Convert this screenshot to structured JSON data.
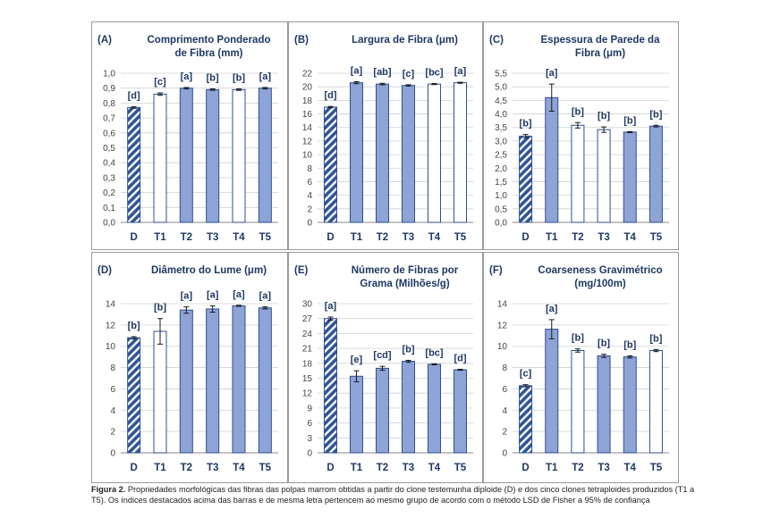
{
  "colors": {
    "D_fill": "#2f5597",
    "D_stripe": "#ffffff",
    "filled": "#8ea3d6",
    "open": "#ffffff",
    "bar_stroke": "#2f4f8f",
    "text": "#1f3864",
    "grid": "#d0d0d0",
    "panel_border": "#9a9a9a"
  },
  "chart_data": [
    {
      "id": "A",
      "type": "bar",
      "panel_label": "(A)",
      "title_lines": [
        "Comprimento Ponderado",
        "de Fibra (mm)"
      ],
      "categories": [
        "D",
        "T1",
        "T2",
        "T3",
        "T4",
        "T5"
      ],
      "values": [
        0.77,
        0.86,
        0.9,
        0.89,
        0.89,
        0.9
      ],
      "errors": [
        0.005,
        0.008,
        0.005,
        0.005,
        0.005,
        0.005
      ],
      "letters": [
        "[d]",
        "[c]",
        "[a]",
        "[b]",
        "[b]",
        "[a]"
      ],
      "styles": [
        "hatch",
        "open",
        "filled",
        "filled",
        "open",
        "filled"
      ],
      "ylim": [
        0,
        1.0
      ],
      "yticks": [
        "0,0",
        "0,1",
        "0,2",
        "0,3",
        "0,4",
        "0,5",
        "0,6",
        "0,7",
        "0,8",
        "0,9",
        "1,0"
      ]
    },
    {
      "id": "B",
      "type": "bar",
      "panel_label": "(B)",
      "title_lines": [
        "Largura de Fibra (μm)"
      ],
      "categories": [
        "D",
        "T1",
        "T2",
        "T3",
        "T4",
        "T5"
      ],
      "values": [
        17.0,
        20.6,
        20.4,
        20.2,
        20.4,
        20.6
      ],
      "errors": [
        0.1,
        0.15,
        0.12,
        0.1,
        0.08,
        0.08
      ],
      "letters": [
        "[d]",
        "[a]",
        "[ab]",
        "[c]",
        "[bc]",
        "[a]"
      ],
      "styles": [
        "hatch",
        "filled",
        "filled",
        "filled",
        "open",
        "open"
      ],
      "ylim": [
        0,
        22
      ],
      "yticks": [
        "0",
        "2",
        "4",
        "6",
        "8",
        "10",
        "12",
        "14",
        "16",
        "18",
        "20",
        "22"
      ]
    },
    {
      "id": "C",
      "type": "bar",
      "panel_label": "(C)",
      "title_lines": [
        "Espessura de Parede da",
        "Fibra (μm)"
      ],
      "categories": [
        "D",
        "T1",
        "T2",
        "T3",
        "T4",
        "T5"
      ],
      "values": [
        3.18,
        4.6,
        3.58,
        3.42,
        3.33,
        3.55
      ],
      "errors": [
        0.06,
        0.5,
        0.1,
        0.1,
        0.02,
        0.03
      ],
      "letters": [
        "[b]",
        "[a]",
        "[b]",
        "[b]",
        "[b]",
        "[b]"
      ],
      "styles": [
        "hatch",
        "filled",
        "open",
        "open",
        "filled",
        "filled"
      ],
      "ylim": [
        0,
        5.5
      ],
      "yticks": [
        "0,0",
        "0,5",
        "1,0",
        "1,5",
        "2,0",
        "2,5",
        "3,0",
        "3,5",
        "4,0",
        "4,5",
        "5,0",
        "5,5"
      ]
    },
    {
      "id": "D",
      "type": "bar",
      "panel_label": "(D)",
      "title_lines": [
        "Diâmetro do Lume (μm)"
      ],
      "categories": [
        "D",
        "T1",
        "T2",
        "T3",
        "T4",
        "T5"
      ],
      "values": [
        10.8,
        11.4,
        13.4,
        13.5,
        13.8,
        13.6
      ],
      "errors": [
        0.1,
        1.2,
        0.3,
        0.3,
        0.05,
        0.1
      ],
      "letters": [
        "[b]",
        "[b]",
        "[a]",
        "[a]",
        "[a]",
        "[a]"
      ],
      "styles": [
        "hatch",
        "open",
        "filled",
        "filled",
        "filled",
        "filled"
      ],
      "ylim": [
        0,
        14
      ],
      "yticks": [
        "0",
        "2",
        "4",
        "6",
        "8",
        "10",
        "12",
        "14"
      ]
    },
    {
      "id": "E",
      "type": "bar",
      "panel_label": "(E)",
      "title_lines": [
        "Número de Fibras por",
        "Grama (Milhões/g)"
      ],
      "categories": [
        "D",
        "T1",
        "T2",
        "T3",
        "T4",
        "T5"
      ],
      "values": [
        27.0,
        15.4,
        17.0,
        18.4,
        17.8,
        16.7
      ],
      "errors": [
        0.3,
        1.1,
        0.4,
        0.2,
        0.1,
        0.1
      ],
      "letters": [
        "[a]",
        "[e]",
        "[cd]",
        "[b]",
        "[bc]",
        "[d]"
      ],
      "styles": [
        "hatch",
        "filled",
        "filled",
        "filled",
        "filled",
        "filled"
      ],
      "ylim": [
        0,
        30
      ],
      "yticks": [
        "0",
        "3",
        "6",
        "9",
        "12",
        "15",
        "18",
        "21",
        "24",
        "27",
        "30"
      ]
    },
    {
      "id": "F",
      "type": "bar",
      "panel_label": "(F)",
      "title_lines": [
        "Coarseness Gravimétrico",
        "(mg/100m)"
      ],
      "categories": [
        "D",
        "T1",
        "T2",
        "T3",
        "T4",
        "T5"
      ],
      "values": [
        6.3,
        11.6,
        9.6,
        9.1,
        9.0,
        9.6
      ],
      "errors": [
        0.1,
        0.9,
        0.15,
        0.15,
        0.1,
        0.1
      ],
      "letters": [
        "[c]",
        "[a]",
        "[b]",
        "[b]",
        "[b]",
        "[b]"
      ],
      "styles": [
        "hatch",
        "filled",
        "open",
        "filled",
        "filled",
        "open"
      ],
      "ylim": [
        0,
        14
      ],
      "yticks": [
        "0",
        "2",
        "4",
        "6",
        "8",
        "10",
        "12",
        "14"
      ]
    }
  ],
  "caption": {
    "label": "Figura 2.",
    "text": " Propriedades morfológicas das fibras das polpas marrom obtidas a partir do clone testemunha diploide (D) e dos cinco clones tetraploides produzidos (T1 a T5). Os índices destacados acima das barras e de mesma letra pertencem ao mesmo grupo de acordo com o método LSD de Fisher a 95% de confiança"
  }
}
